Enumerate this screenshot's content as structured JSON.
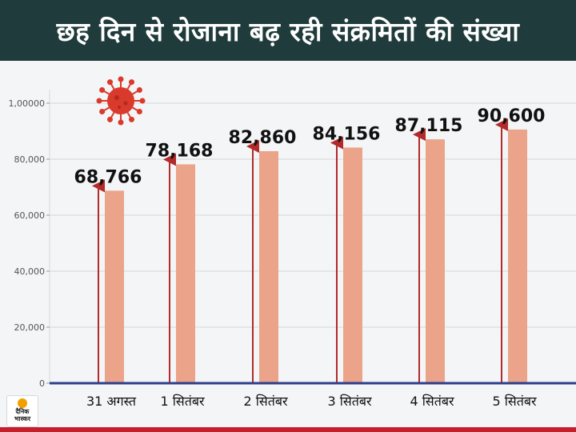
{
  "header": {
    "title": "छह दिन से रोजाना बढ़ रही संक्रमितों की संख्या"
  },
  "logo": {
    "line1": "दैनिक",
    "line2": "भास्कर"
  },
  "colors": {
    "header_bg": "#1f3b3b",
    "bar": "#eba48a",
    "arrow": "#b22a2a",
    "axis": "#2d3e8c",
    "virus": "#d93a2b",
    "bottom_strip": "#c81d2a"
  },
  "icons": [
    "coronavirus-icon"
  ],
  "chart_data": {
    "type": "bar",
    "title": "छह दिन से रोजाना बढ़ रही संक्रमितों की संख्या",
    "xlabel": "",
    "ylabel": "",
    "categories": [
      "31 अगस्त",
      "1 सितंबर",
      "2 सितंबर",
      "3 सितंबर",
      "4 सितंबर",
      "5 सितंबर"
    ],
    "values": [
      68766,
      78168,
      82860,
      84156,
      87115,
      90600
    ],
    "value_labels": [
      "68,766",
      "78,168",
      "82,860",
      "84,156",
      "87,115",
      "90,600"
    ],
    "yticks": [
      0,
      20000,
      40000,
      60000,
      80000,
      100000
    ],
    "ytick_labels": [
      "0",
      "20,000",
      "40,000",
      "60,000",
      "80,000",
      "1,00000"
    ],
    "ylim": [
      0,
      100000
    ],
    "grid": true,
    "legend": "none"
  }
}
